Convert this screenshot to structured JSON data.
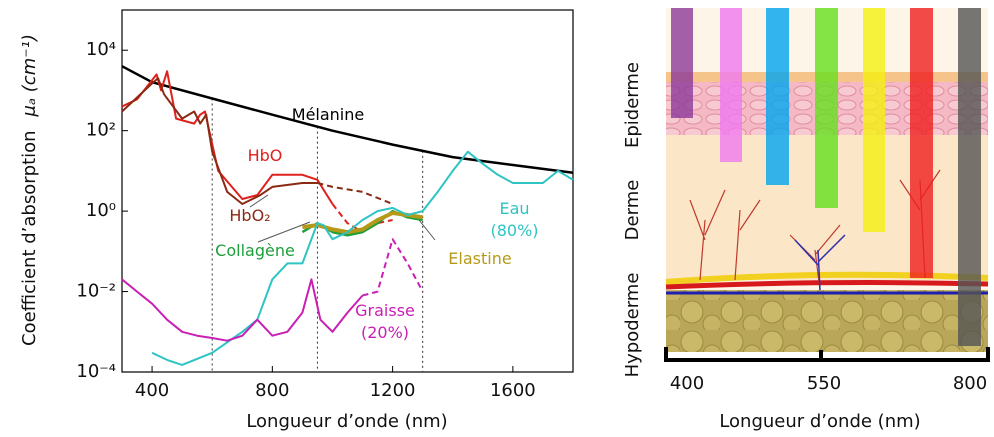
{
  "chart_data": {
    "type": "line",
    "x_label": "Longueur d’onde (nm)",
    "y_label": "Coefficient d’absorption",
    "y_unit": "μₐ (cm⁻¹)",
    "xlim": [
      300,
      1800
    ],
    "xticks": [
      400,
      800,
      1200,
      1600
    ],
    "ylim": [
      0.0001,
      100000
    ],
    "log_y": true,
    "yticks": [
      {
        "value": 0.0001,
        "label": "10⁻⁴"
      },
      {
        "value": 0.01,
        "label": "10⁻²"
      },
      {
        "value": 1,
        "label": "10⁰"
      },
      {
        "value": 100,
        "label": "10²"
      },
      {
        "value": 10000,
        "label": "10⁴"
      }
    ],
    "vlines": [
      600,
      950,
      1300
    ],
    "series": [
      {
        "name": "Mélanine",
        "color": "#000000",
        "line_width": 2.5,
        "x": [
          300,
          400,
          600,
          800,
          1000,
          1200,
          1400,
          1600,
          1800
        ],
        "values": [
          4000,
          1600,
          630,
          250,
          100,
          45,
          22,
          14,
          9
        ]
      },
      {
        "name": "HbO",
        "color": "#e0201b",
        "line_width": 2,
        "dash_from": 1000,
        "x": [
          300,
          350,
          415,
          430,
          450,
          480,
          540,
          560,
          576,
          590,
          620,
          700,
          750,
          800,
          900,
          950,
          1000,
          1050,
          1100,
          1150,
          1200
        ],
        "values": [
          400,
          600,
          2500,
          1000,
          3000,
          200,
          150,
          250,
          300,
          100,
          10,
          2,
          2.5,
          8,
          8,
          6,
          1.5,
          0.5,
          0.3,
          0.5,
          0.6
        ]
      },
      {
        "name": "HbO₂",
        "color": "#8b2a14",
        "line_width": 2,
        "dash_from": 950,
        "x": [
          300,
          400,
          420,
          440,
          500,
          540,
          560,
          580,
          600,
          650,
          700,
          760,
          800,
          900,
          950,
          1000,
          1100,
          1200
        ],
        "values": [
          300,
          1500,
          2000,
          800,
          200,
          300,
          150,
          250,
          30,
          3,
          1.5,
          2.5,
          4,
          5,
          5,
          4,
          3,
          1.5
        ]
      },
      {
        "name": "Collagène",
        "color": "#1f9e3a",
        "line_width": 2.5,
        "x": [
          900,
          950,
          1000,
          1050,
          1100,
          1150,
          1200,
          1250,
          1300
        ],
        "values": [
          0.3,
          0.5,
          0.3,
          0.25,
          0.3,
          0.5,
          1.0,
          0.7,
          0.6
        ]
      },
      {
        "name": "Elastine",
        "color": "#b59a1a",
        "line_width": 4,
        "x": [
          900,
          950,
          1000,
          1050,
          1100,
          1150,
          1200,
          1250,
          1300
        ],
        "values": [
          0.4,
          0.45,
          0.35,
          0.3,
          0.35,
          0.6,
          0.9,
          0.8,
          0.7
        ]
      },
      {
        "name": "Eau (80%)",
        "color": "#2ec4c4",
        "line_width": 2,
        "x": [
          400,
          450,
          500,
          600,
          700,
          750,
          800,
          850,
          900,
          950,
          970,
          1000,
          1050,
          1100,
          1150,
          1200,
          1250,
          1300,
          1350,
          1400,
          1450,
          1500,
          1550,
          1600,
          1700,
          1750,
          1800
        ],
        "values": [
          0.0003,
          0.0002,
          0.00015,
          0.0003,
          0.001,
          0.002,
          0.02,
          0.05,
          0.05,
          0.5,
          0.45,
          0.2,
          0.3,
          0.6,
          1.0,
          1.2,
          0.8,
          1.0,
          3,
          10,
          30,
          15,
          8,
          5,
          5,
          10,
          6
        ]
      },
      {
        "name": "Graisse (20%)",
        "color": "#c81fb4",
        "line_width": 2,
        "dash_from": 1100,
        "x": [
          300,
          350,
          400,
          450,
          500,
          550,
          600,
          650,
          700,
          750,
          800,
          850,
          900,
          930,
          960,
          1000,
          1050,
          1100,
          1150,
          1200,
          1250,
          1300
        ],
        "values": [
          0.02,
          0.01,
          0.005,
          0.002,
          0.001,
          0.0008,
          0.0007,
          0.0006,
          0.0008,
          0.002,
          0.0008,
          0.001,
          0.003,
          0.02,
          0.002,
          0.001,
          0.003,
          0.008,
          0.01,
          0.2,
          0.05,
          0.01
        ]
      }
    ]
  },
  "diagram": {
    "layers": [
      "Epiderme",
      "Derme",
      "Hypoderme"
    ],
    "scale": [
      "400",
      "550",
      "800"
    ],
    "x_label": "Longueur d’onde (nm)"
  }
}
